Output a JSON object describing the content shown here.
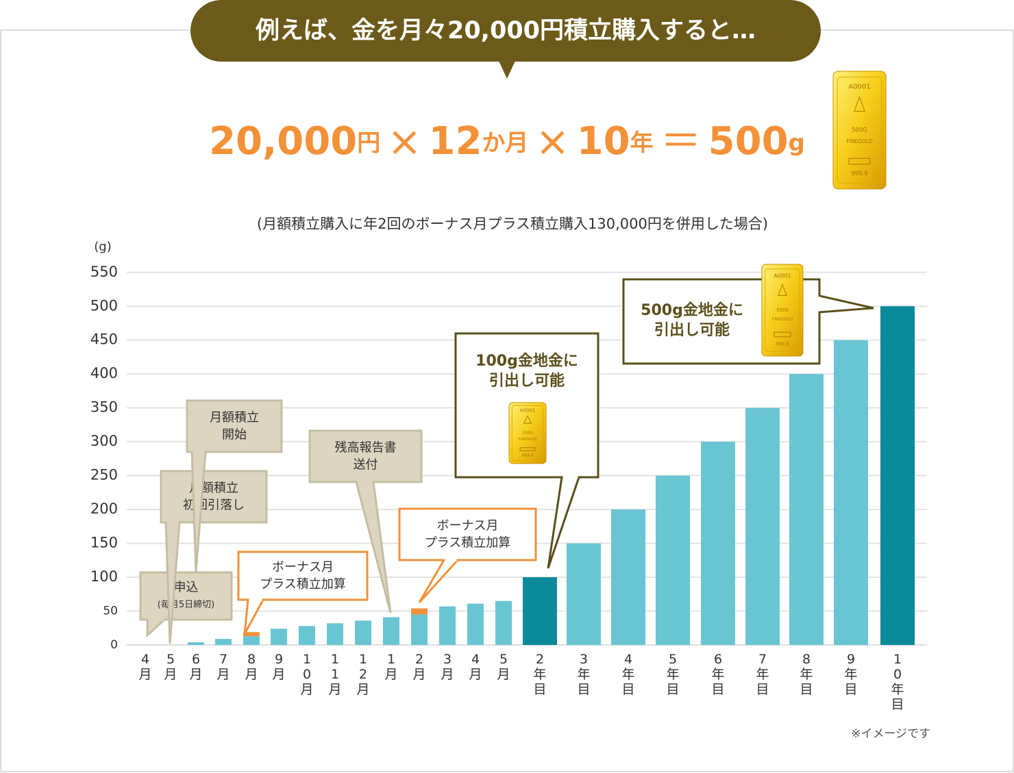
{
  "header": "例えば、金を月々20,000円積立購入すると…",
  "formula": [
    "20,000",
    "円",
    "×",
    "12",
    "か月",
    "×",
    "10",
    "年",
    "＝",
    "500",
    "g"
  ],
  "gold_bar": {
    "serial": "A0001",
    "weight_large": "500G",
    "weight_small": "100G",
    "brand": "FINEGOLD",
    "purity": "999.9"
  },
  "chart_data": {
    "type": "bar",
    "stacked": true,
    "subtitle": "(月額積立購入に年2回のボーナス月プラス積立購入130,000円を併用した場合)",
    "y_label": "(g)",
    "categories": [
      "4月",
      "5月",
      "6月",
      "7月",
      "8月",
      "9月",
      "10月",
      "11月",
      "12月",
      "1月",
      "2月",
      "3月",
      "4月",
      "5月",
      "2年目",
      "3年目",
      "4年目",
      "5年目",
      "6年目",
      "7年目",
      "8年目",
      "9年目",
      "10年目"
    ],
    "series": [
      {
        "colors": [
          "#6ac5d3",
          "#6ac5d3",
          "#6ac5d3",
          "#6ac5d3",
          "#6ac5d3",
          "#6ac5d3",
          "#6ac5d3",
          "#6ac5d3",
          "#6ac5d3",
          "#6ac5d3",
          "#6ac5d3",
          "#6ac5d3",
          "#6ac5d3",
          "#6ac5d3",
          "#0b8a9a",
          "#6ac5d3",
          "#6ac5d3",
          "#6ac5d3",
          "#6ac5d3",
          "#6ac5d3",
          "#6ac5d3",
          "#6ac5d3",
          "#0b8a9a"
        ],
        "values": [
          0,
          0,
          4,
          9,
          13,
          24,
          28,
          32,
          36,
          41,
          45,
          57,
          61,
          65,
          100,
          150,
          200,
          250,
          300,
          350,
          400,
          450,
          500
        ]
      },
      {
        "color": "#f39139",
        "values": [
          null,
          null,
          null,
          null,
          6,
          null,
          null,
          null,
          null,
          null,
          9,
          null,
          null,
          null,
          null,
          null,
          null,
          null,
          null,
          null,
          null,
          null,
          null
        ]
      }
    ],
    "ylim": [
      0,
      570
    ],
    "yticks": [
      0,
      50,
      100,
      150,
      200,
      250,
      300,
      350,
      400,
      450,
      500,
      550
    ],
    "grid": true,
    "annotations": [
      {
        "lines": [
          "申込",
          "(毎月5日締切)"
        ]
      },
      {
        "lines": [
          "月額積立",
          "初回引落し"
        ]
      },
      {
        "lines": [
          "月額積立",
          "開始"
        ]
      },
      {
        "lines": [
          "ボーナス月",
          "プラス積立加算"
        ]
      },
      {
        "lines": [
          "残高報告書",
          "送付"
        ]
      },
      {
        "lines": [
          "ボーナス月",
          "プラス積立加算"
        ]
      },
      {
        "lines": [
          "100g金地金に",
          "引出し可能"
        ]
      },
      {
        "lines": [
          "500g金地金に",
          "引出し可能"
        ]
      }
    ],
    "note": "※イメージです"
  }
}
